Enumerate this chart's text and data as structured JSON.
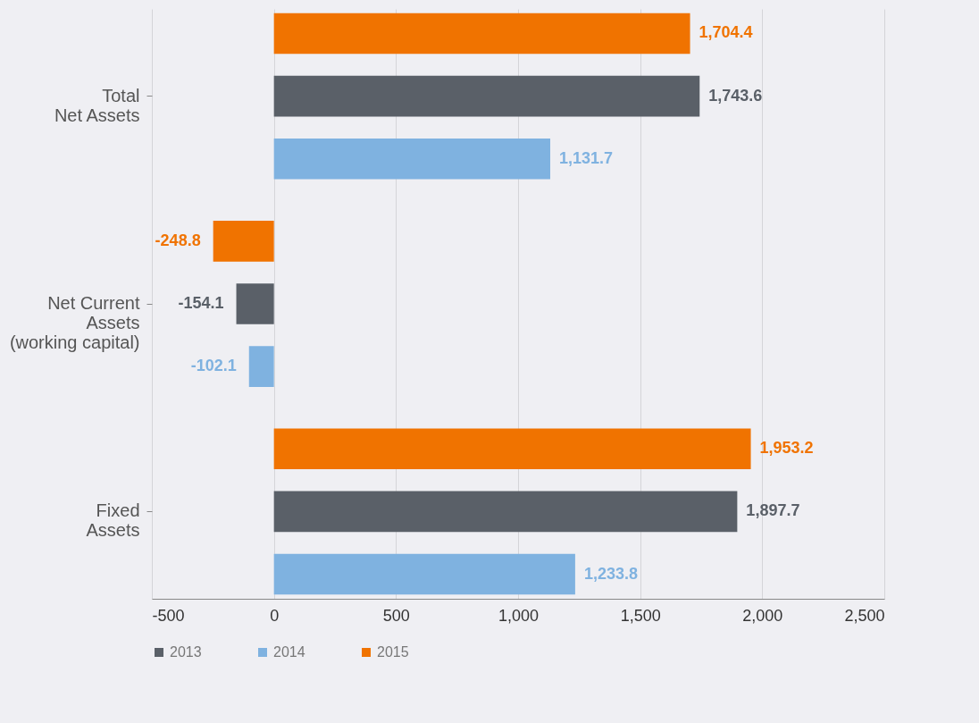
{
  "chart_data": {
    "type": "bar",
    "orientation": "horizontal",
    "categories": [
      "Total\nNet Assets",
      "Net Current\nAssets\n(working capital)",
      "Fixed\nAssets"
    ],
    "series": [
      {
        "name": "2015",
        "color": "#f07300",
        "values": [
          1704.4,
          -248.8,
          1953.2
        ],
        "value_labels": [
          "1,704.4",
          "-248.8",
          "1,953.2"
        ]
      },
      {
        "name": "2013",
        "color": "#5a6068",
        "values": [
          1743.6,
          -154.1,
          1897.7
        ],
        "value_labels": [
          "1,743.6",
          "-154.1",
          "1,897.7"
        ]
      },
      {
        "name": "2014",
        "color": "#7fb2e0",
        "values": [
          1131.7,
          -102.1,
          1233.8
        ],
        "value_labels": [
          "1,131.7",
          "-102.1",
          "1,233.8"
        ]
      }
    ],
    "xlim": [
      -500,
      2500
    ],
    "xticks": [
      -500,
      0,
      500,
      {
        "value": 1000,
        "label": "1,000"
      },
      {
        "value": 1500,
        "label": "1,500"
      },
      {
        "value": 2000,
        "label": "2,000"
      },
      {
        "value": 2500,
        "label": "2,500"
      }
    ],
    "grid": "x",
    "legend": "bottom"
  }
}
